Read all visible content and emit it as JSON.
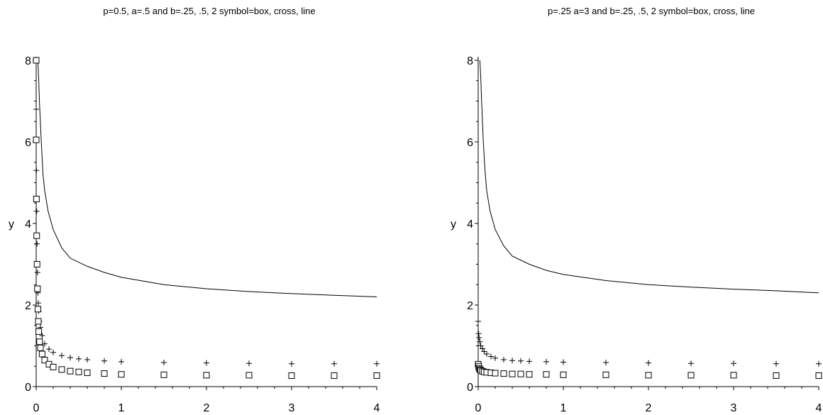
{
  "chart_data": [
    {
      "type": "line",
      "title": "p=0.5, a=.5 and b=.25, .5, 2 symbol=box, cross, line",
      "xlabel": "",
      "ylabel": "y",
      "xlim": [
        0,
        4
      ],
      "ylim": [
        0,
        8
      ],
      "x_ticks": [
        "0",
        "1",
        "2",
        "3",
        "4"
      ],
      "y_ticks": [
        "0",
        "2",
        "4",
        "6",
        "8"
      ],
      "grid": false,
      "series": [
        {
          "symbol": "line",
          "x": [
            0.02,
            0.03,
            0.04,
            0.06,
            0.08,
            0.1,
            0.14,
            0.2,
            0.3,
            0.4,
            0.6,
            0.8,
            1.0,
            1.5,
            2.0,
            2.5,
            3.0,
            3.5,
            4.0
          ],
          "y": [
            8.0,
            7.5,
            6.9,
            6.0,
            5.2,
            4.8,
            4.3,
            3.85,
            3.4,
            3.15,
            2.95,
            2.8,
            2.68,
            2.5,
            2.4,
            2.33,
            2.28,
            2.24,
            2.2
          ]
        },
        {
          "symbol": "cross",
          "x": [
            0.0,
            0.003,
            0.006,
            0.01,
            0.015,
            0.02,
            0.025,
            0.03,
            0.04,
            0.05,
            0.07,
            0.1,
            0.15,
            0.2,
            0.3,
            0.4,
            0.5,
            0.6,
            0.8,
            1.0,
            1.5,
            2.0,
            2.5,
            3.0,
            3.5,
            4.0
          ],
          "y": [
            6.8,
            5.3,
            4.3,
            3.5,
            2.8,
            2.3,
            2.05,
            1.85,
            1.6,
            1.45,
            1.25,
            1.05,
            0.92,
            0.84,
            0.76,
            0.71,
            0.68,
            0.66,
            0.63,
            0.61,
            0.59,
            0.58,
            0.57,
            0.56,
            0.56,
            0.56
          ]
        },
        {
          "symbol": "box",
          "x": [
            0.0,
            0.0,
            0.003,
            0.006,
            0.01,
            0.015,
            0.02,
            0.025,
            0.03,
            0.04,
            0.05,
            0.07,
            0.1,
            0.15,
            0.2,
            0.3,
            0.4,
            0.5,
            0.6,
            0.8,
            1.0,
            1.5,
            2.0,
            2.5,
            3.0,
            3.5,
            4.0
          ],
          "y": [
            8.0,
            6.05,
            4.6,
            3.7,
            3.0,
            2.4,
            1.9,
            1.6,
            1.35,
            1.1,
            0.95,
            0.8,
            0.65,
            0.55,
            0.48,
            0.42,
            0.38,
            0.36,
            0.34,
            0.32,
            0.3,
            0.29,
            0.28,
            0.28,
            0.27,
            0.27,
            0.27
          ]
        }
      ]
    },
    {
      "type": "line",
      "title": "p=.25 a=3 and b=.25, .5, 2 symbol=box, cross, line",
      "xlabel": "",
      "ylabel": "y",
      "xlim": [
        0,
        4
      ],
      "ylim": [
        0,
        8
      ],
      "x_ticks": [
        "0",
        "1",
        "2",
        "3",
        "4"
      ],
      "y_ticks": [
        "0",
        "2",
        "4",
        "6",
        "8"
      ],
      "grid": false,
      "series": [
        {
          "symbol": "line",
          "x": [
            0.02,
            0.03,
            0.04,
            0.06,
            0.08,
            0.1,
            0.14,
            0.2,
            0.3,
            0.4,
            0.6,
            0.8,
            1.0,
            1.5,
            2.0,
            2.5,
            3.0,
            3.5,
            4.0
          ],
          "y": [
            8.0,
            7.6,
            7.0,
            6.0,
            5.3,
            4.8,
            4.3,
            3.85,
            3.45,
            3.2,
            3.0,
            2.85,
            2.75,
            2.6,
            2.5,
            2.44,
            2.39,
            2.35,
            2.3
          ]
        },
        {
          "symbol": "cross",
          "x": [
            0.0,
            0.005,
            0.01,
            0.02,
            0.03,
            0.05,
            0.07,
            0.1,
            0.15,
            0.2,
            0.3,
            0.4,
            0.5,
            0.6,
            0.8,
            1.0,
            1.5,
            2.0,
            2.5,
            3.0,
            3.5,
            4.0
          ],
          "y": [
            1.6,
            1.3,
            1.2,
            1.1,
            1.0,
            0.93,
            0.86,
            0.8,
            0.74,
            0.7,
            0.66,
            0.64,
            0.63,
            0.62,
            0.61,
            0.6,
            0.59,
            0.58,
            0.57,
            0.57,
            0.56,
            0.56
          ]
        },
        {
          "symbol": "box",
          "x": [
            0.0,
            0.005,
            0.01,
            0.02,
            0.03,
            0.05,
            0.07,
            0.1,
            0.15,
            0.2,
            0.3,
            0.4,
            0.5,
            0.6,
            0.8,
            1.0,
            1.5,
            2.0,
            2.5,
            3.0,
            3.5,
            4.0
          ],
          "y": [
            0.55,
            0.5,
            0.45,
            0.42,
            0.4,
            0.38,
            0.36,
            0.35,
            0.34,
            0.33,
            0.32,
            0.31,
            0.31,
            0.3,
            0.3,
            0.29,
            0.29,
            0.28,
            0.28,
            0.28,
            0.27,
            0.27
          ]
        }
      ]
    }
  ]
}
